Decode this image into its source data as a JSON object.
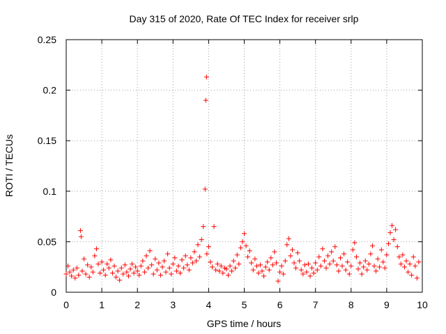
{
  "chart_data": {
    "type": "scatter",
    "title": "Day 315 of 2020, Rate Of TEC Index for receiver srlp",
    "xlabel": "GPS time / hours",
    "ylabel": "ROTI / TECUs",
    "xlim": [
      0,
      10
    ],
    "ylim": [
      0,
      0.25
    ],
    "xticks": [
      0,
      1,
      2,
      3,
      4,
      5,
      6,
      7,
      8,
      9,
      10
    ],
    "xtick_labels": [
      "0",
      "1",
      "2",
      "3",
      "4",
      "5",
      "6",
      "7",
      "8",
      "9",
      "10"
    ],
    "yticks": [
      0,
      0.05,
      0.1,
      0.15,
      0.2,
      0.25
    ],
    "ytick_labels": [
      "0",
      "0.05",
      "0.1",
      "0.15",
      "0.2",
      "0.25"
    ],
    "grid": true,
    "marker": "+",
    "color": "#ff0000",
    "series": [
      {
        "name": "ROTI",
        "points": [
          [
            0.0,
            0.018
          ],
          [
            0.05,
            0.026
          ],
          [
            0.1,
            0.02
          ],
          [
            0.15,
            0.016
          ],
          [
            0.2,
            0.022
          ],
          [
            0.25,
            0.014
          ],
          [
            0.3,
            0.024
          ],
          [
            0.35,
            0.017
          ],
          [
            0.4,
            0.061
          ],
          [
            0.42,
            0.055
          ],
          [
            0.45,
            0.021
          ],
          [
            0.5,
            0.033
          ],
          [
            0.55,
            0.018
          ],
          [
            0.6,
            0.027
          ],
          [
            0.65,
            0.015
          ],
          [
            0.7,
            0.025
          ],
          [
            0.75,
            0.02
          ],
          [
            0.8,
            0.036
          ],
          [
            0.85,
            0.043
          ],
          [
            0.9,
            0.028
          ],
          [
            0.95,
            0.019
          ],
          [
            1.0,
            0.03
          ],
          [
            1.05,
            0.022
          ],
          [
            1.1,
            0.017
          ],
          [
            1.15,
            0.028
          ],
          [
            1.2,
            0.024
          ],
          [
            1.25,
            0.032
          ],
          [
            1.3,
            0.019
          ],
          [
            1.35,
            0.026
          ],
          [
            1.4,
            0.015
          ],
          [
            1.45,
            0.021
          ],
          [
            1.5,
            0.012
          ],
          [
            1.55,
            0.024
          ],
          [
            1.6,
            0.018
          ],
          [
            1.65,
            0.027
          ],
          [
            1.7,
            0.02
          ],
          [
            1.75,
            0.016
          ],
          [
            1.8,
            0.023
          ],
          [
            1.85,
            0.028
          ],
          [
            1.9,
            0.019
          ],
          [
            1.95,
            0.025
          ],
          [
            2.0,
            0.021
          ],
          [
            2.05,
            0.017
          ],
          [
            2.1,
            0.026
          ],
          [
            2.15,
            0.031
          ],
          [
            2.2,
            0.02
          ],
          [
            2.25,
            0.036
          ],
          [
            2.3,
            0.024
          ],
          [
            2.35,
            0.041
          ],
          [
            2.4,
            0.027
          ],
          [
            2.45,
            0.018
          ],
          [
            2.5,
            0.033
          ],
          [
            2.55,
            0.022
          ],
          [
            2.6,
            0.029
          ],
          [
            2.65,
            0.017
          ],
          [
            2.7,
            0.025
          ],
          [
            2.75,
            0.031
          ],
          [
            2.8,
            0.02
          ],
          [
            2.85,
            0.038
          ],
          [
            2.9,
            0.024
          ],
          [
            2.95,
            0.018
          ],
          [
            3.0,
            0.028
          ],
          [
            3.05,
            0.034
          ],
          [
            3.1,
            0.021
          ],
          [
            3.15,
            0.026
          ],
          [
            3.2,
            0.019
          ],
          [
            3.25,
            0.032
          ],
          [
            3.3,
            0.024
          ],
          [
            3.35,
            0.036
          ],
          [
            3.4,
            0.027
          ],
          [
            3.45,
            0.022
          ],
          [
            3.5,
            0.034
          ],
          [
            3.55,
            0.029
          ],
          [
            3.6,
            0.04
          ],
          [
            3.65,
            0.031
          ],
          [
            3.7,
            0.047
          ],
          [
            3.75,
            0.035
          ],
          [
            3.8,
            0.052
          ],
          [
            3.85,
            0.065
          ],
          [
            3.9,
            0.102
          ],
          [
            3.92,
            0.19
          ],
          [
            3.94,
            0.213
          ],
          [
            3.95,
            0.038
          ],
          [
            4.0,
            0.045
          ],
          [
            4.05,
            0.03
          ],
          [
            4.1,
            0.025
          ],
          [
            4.15,
            0.065
          ],
          [
            4.2,
            0.022
          ],
          [
            4.25,
            0.028
          ],
          [
            4.3,
            0.021
          ],
          [
            4.35,
            0.026
          ],
          [
            4.4,
            0.019
          ],
          [
            4.45,
            0.024
          ],
          [
            4.5,
            0.023
          ],
          [
            4.55,
            0.017
          ],
          [
            4.6,
            0.026
          ],
          [
            4.65,
            0.021
          ],
          [
            4.7,
            0.031
          ],
          [
            4.75,
            0.024
          ],
          [
            4.8,
            0.037
          ],
          [
            4.85,
            0.028
          ],
          [
            4.9,
            0.044
          ],
          [
            4.95,
            0.05
          ],
          [
            5.0,
            0.058
          ],
          [
            5.05,
            0.046
          ],
          [
            5.1,
            0.035
          ],
          [
            5.15,
            0.041
          ],
          [
            5.2,
            0.029
          ],
          [
            5.25,
            0.022
          ],
          [
            5.3,
            0.033
          ],
          [
            5.35,
            0.026
          ],
          [
            5.4,
            0.019
          ],
          [
            5.45,
            0.027
          ],
          [
            5.5,
            0.021
          ],
          [
            5.55,
            0.016
          ],
          [
            5.6,
            0.025
          ],
          [
            5.65,
            0.03
          ],
          [
            5.7,
            0.022
          ],
          [
            5.75,
            0.034
          ],
          [
            5.8,
            0.027
          ],
          [
            5.85,
            0.04
          ],
          [
            5.9,
            0.029
          ],
          [
            5.95,
            0.011
          ],
          [
            6.0,
            0.02
          ],
          [
            6.05,
            0.026
          ],
          [
            6.1,
            0.018
          ],
          [
            6.15,
            0.031
          ],
          [
            6.2,
            0.047
          ],
          [
            6.25,
            0.053
          ],
          [
            6.3,
            0.036
          ],
          [
            6.35,
            0.042
          ],
          [
            6.4,
            0.029
          ],
          [
            6.45,
            0.024
          ],
          [
            6.5,
            0.039
          ],
          [
            6.55,
            0.031
          ],
          [
            6.6,
            0.022
          ],
          [
            6.65,
            0.018
          ],
          [
            6.7,
            0.027
          ],
          [
            6.75,
            0.02
          ],
          [
            6.8,
            0.028
          ],
          [
            6.85,
            0.016
          ],
          [
            6.9,
            0.024
          ],
          [
            6.95,
            0.019
          ],
          [
            7.0,
            0.029
          ],
          [
            7.05,
            0.022
          ],
          [
            7.1,
            0.035
          ],
          [
            7.15,
            0.026
          ],
          [
            7.2,
            0.043
          ],
          [
            7.25,
            0.031
          ],
          [
            7.3,
            0.024
          ],
          [
            7.35,
            0.036
          ],
          [
            7.4,
            0.028
          ],
          [
            7.45,
            0.04
          ],
          [
            7.5,
            0.031
          ],
          [
            7.55,
            0.045
          ],
          [
            7.6,
            0.027
          ],
          [
            7.65,
            0.021
          ],
          [
            7.7,
            0.034
          ],
          [
            7.75,
            0.026
          ],
          [
            7.8,
            0.038
          ],
          [
            7.85,
            0.022
          ],
          [
            7.9,
            0.03
          ],
          [
            7.95,
            0.018
          ],
          [
            8.0,
            0.026
          ],
          [
            8.05,
            0.042
          ],
          [
            8.1,
            0.049
          ],
          [
            8.15,
            0.035
          ],
          [
            8.2,
            0.023
          ],
          [
            8.25,
            0.029
          ],
          [
            8.3,
            0.018
          ],
          [
            8.35,
            0.025
          ],
          [
            8.4,
            0.031
          ],
          [
            8.45,
            0.022
          ],
          [
            8.5,
            0.028
          ],
          [
            8.55,
            0.038
          ],
          [
            8.6,
            0.046
          ],
          [
            8.65,
            0.026
          ],
          [
            8.7,
            0.021
          ],
          [
            8.75,
            0.033
          ],
          [
            8.8,
            0.025
          ],
          [
            8.85,
            0.042
          ],
          [
            8.9,
            0.03
          ],
          [
            8.95,
            0.024
          ],
          [
            9.0,
            0.037
          ],
          [
            9.05,
            0.048
          ],
          [
            9.1,
            0.059
          ],
          [
            9.15,
            0.066
          ],
          [
            9.2,
            0.052
          ],
          [
            9.25,
            0.062
          ],
          [
            9.3,
            0.045
          ],
          [
            9.35,
            0.035
          ],
          [
            9.4,
            0.028
          ],
          [
            9.45,
            0.037
          ],
          [
            9.5,
            0.025
          ],
          [
            9.55,
            0.031
          ],
          [
            9.6,
            0.02
          ],
          [
            9.65,
            0.028
          ],
          [
            9.7,
            0.017
          ],
          [
            9.75,
            0.035
          ],
          [
            9.8,
            0.026
          ],
          [
            9.85,
            0.014
          ],
          [
            9.9,
            0.03
          ]
        ]
      }
    ]
  }
}
